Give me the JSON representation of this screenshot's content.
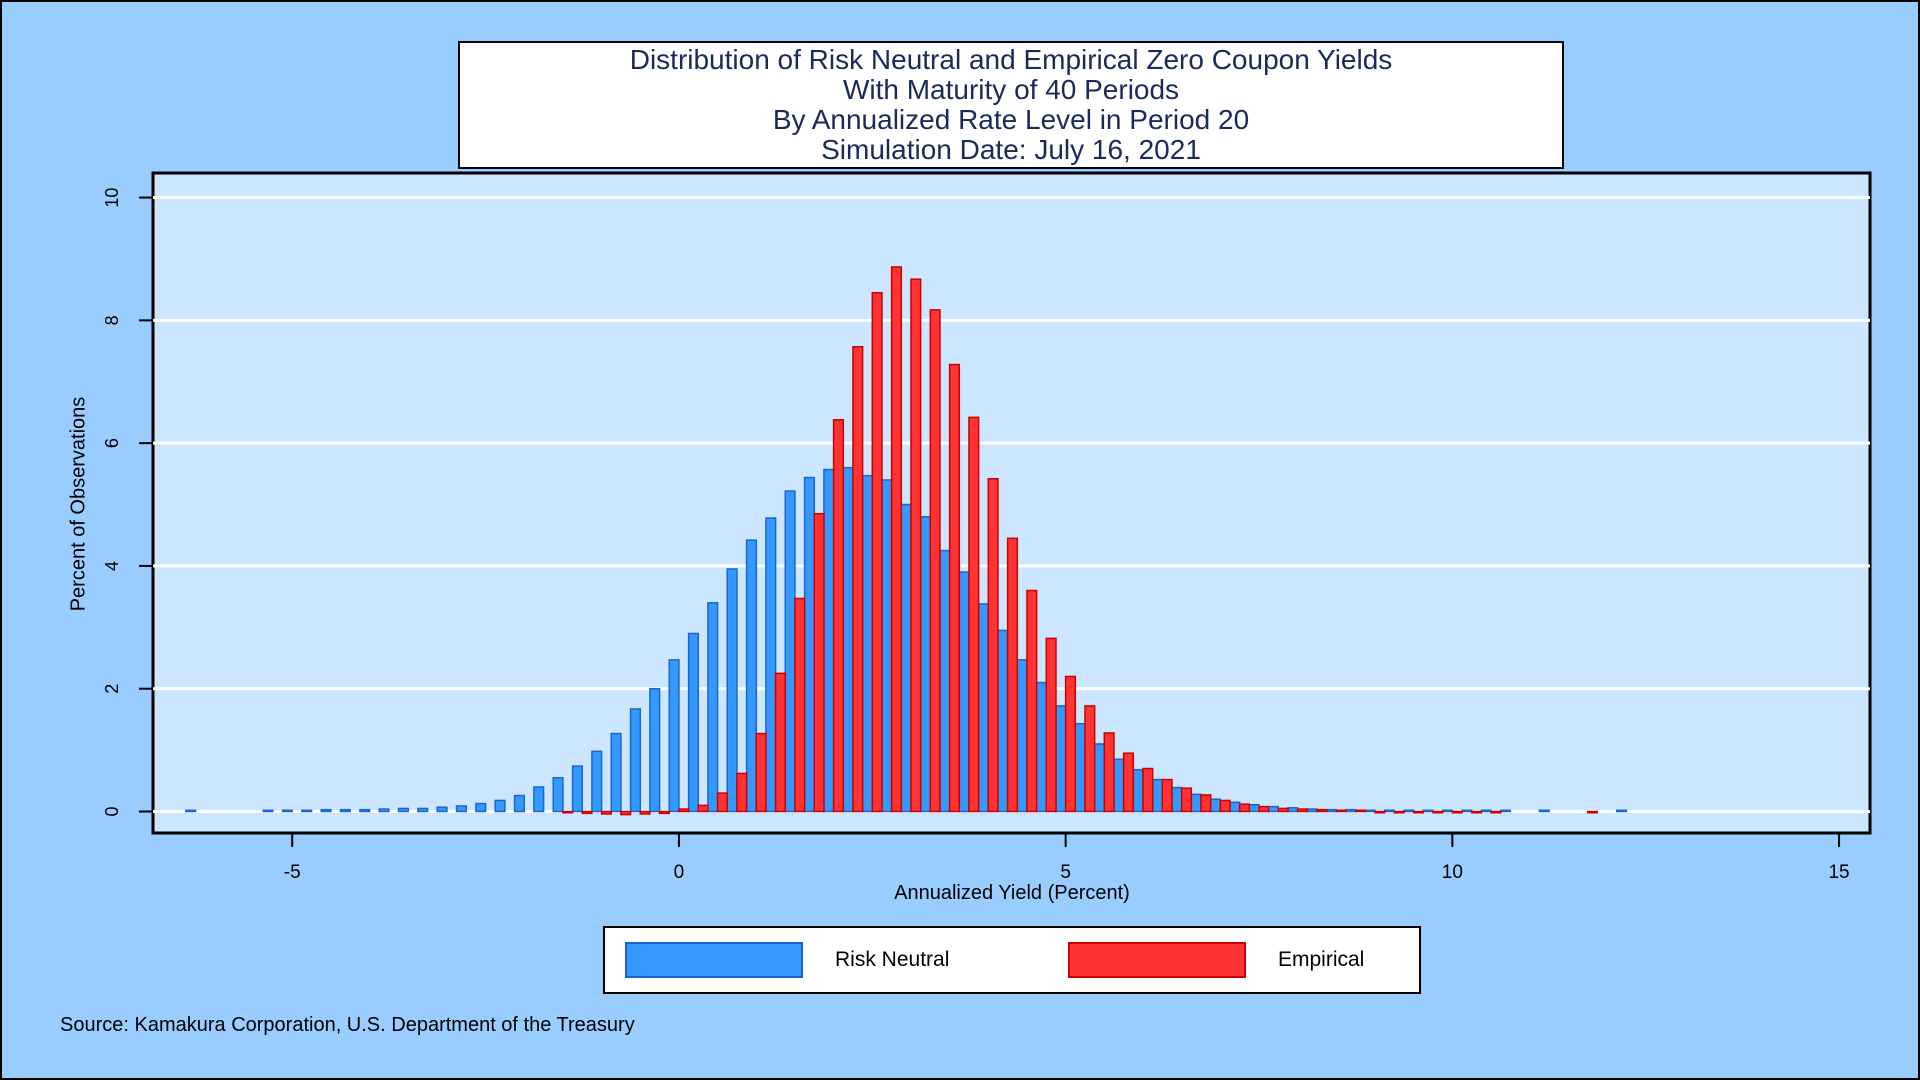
{
  "chart_data": {
    "type": "bar",
    "title_lines": [
      "Distribution of Risk Neutral and Empirical Zero Coupon Yields",
      "With Maturity of 40 Periods",
      "By Annualized Rate Level in Period 20",
      "Simulation Date: July 16, 2021"
    ],
    "xlabel": "Annualized Yield (Percent)",
    "ylabel": "Percent of Observations",
    "xlim": [
      -6.8,
      15.4
    ],
    "ylim": [
      -0.35,
      10.4
    ],
    "xticks": [
      -5,
      0,
      5,
      10,
      15
    ],
    "yticks": [
      0,
      2,
      4,
      6,
      8,
      10
    ],
    "grid": true,
    "legend_position": "bottom",
    "series": [
      {
        "name": "Risk Neutral",
        "color": "#3399ff",
        "stroke": "#1a66cc",
        "x": [
          -6.25,
          -5.25,
          -5.0,
          -4.75,
          -4.5,
          -4.25,
          -4.0,
          -3.75,
          -3.5,
          -3.25,
          -3.0,
          -2.75,
          -2.5,
          -2.25,
          -2.0,
          -1.75,
          -1.5,
          -1.25,
          -1.0,
          -0.75,
          -0.5,
          -0.25,
          0.0,
          0.25,
          0.5,
          0.75,
          1.0,
          1.25,
          1.5,
          1.75,
          2.0,
          2.25,
          2.5,
          2.75,
          3.0,
          3.25,
          3.5,
          3.75,
          4.0,
          4.25,
          4.5,
          4.75,
          5.0,
          5.25,
          5.5,
          5.75,
          6.0,
          6.25,
          6.5,
          6.75,
          7.0,
          7.25,
          7.5,
          7.75,
          8.0,
          8.25,
          8.5,
          8.75,
          9.0,
          9.25,
          9.5,
          9.75,
          10.0,
          10.25,
          10.5,
          10.75,
          11.25,
          12.25
        ],
        "values": [
          0.02,
          0.02,
          0.02,
          0.02,
          0.03,
          0.03,
          0.03,
          0.04,
          0.05,
          0.05,
          0.07,
          0.09,
          0.13,
          0.18,
          0.26,
          0.4,
          0.55,
          0.74,
          0.98,
          1.27,
          1.67,
          2.0,
          2.47,
          2.9,
          3.4,
          3.95,
          4.42,
          4.78,
          5.22,
          5.44,
          5.57,
          5.6,
          5.47,
          5.4,
          5.0,
          4.8,
          4.25,
          3.9,
          3.38,
          2.95,
          2.47,
          2.1,
          1.72,
          1.43,
          1.1,
          0.85,
          0.68,
          0.52,
          0.39,
          0.28,
          0.2,
          0.15,
          0.11,
          0.08,
          0.06,
          0.04,
          0.03,
          0.03,
          0.02,
          0.02,
          0.02,
          0.02,
          0.02,
          0.02,
          0.02,
          0.02,
          0.02,
          0.02
        ]
      },
      {
        "name": "Empirical",
        "color": "#ff3333",
        "stroke": "#cc0000",
        "x": [
          -1.5,
          -1.25,
          -1.0,
          -0.75,
          -0.5,
          -0.25,
          0.0,
          0.25,
          0.5,
          0.75,
          1.0,
          1.25,
          1.5,
          1.75,
          2.0,
          2.25,
          2.5,
          2.75,
          3.0,
          3.25,
          3.5,
          3.75,
          4.0,
          4.25,
          4.5,
          4.75,
          5.0,
          5.25,
          5.5,
          5.75,
          6.0,
          6.25,
          6.5,
          6.75,
          7.0,
          7.25,
          7.5,
          7.75,
          8.0,
          8.25,
          8.5,
          8.75,
          9.0,
          9.25,
          9.5,
          9.75,
          10.0,
          10.25,
          10.5,
          11.75
        ],
        "values": [
          -0.02,
          -0.03,
          -0.04,
          -0.05,
          -0.04,
          -0.03,
          0.04,
          0.1,
          0.3,
          0.62,
          1.27,
          2.25,
          3.47,
          4.85,
          6.38,
          7.57,
          8.45,
          8.87,
          8.67,
          8.17,
          7.28,
          6.42,
          5.42,
          4.45,
          3.6,
          2.82,
          2.2,
          1.72,
          1.28,
          0.95,
          0.7,
          0.52,
          0.38,
          0.27,
          0.18,
          0.12,
          0.08,
          0.05,
          0.04,
          0.03,
          0.02,
          0.02,
          -0.02,
          -0.02,
          -0.02,
          -0.02,
          -0.02,
          -0.02,
          -0.02,
          -0.02
        ]
      }
    ],
    "source_note": "Source: Kamakura Corporation, U.S. Department of the Treasury"
  },
  "colors": {
    "page_background": "#99ccff",
    "plot_background": "#cce6ff",
    "gridline": "#ffffff"
  }
}
